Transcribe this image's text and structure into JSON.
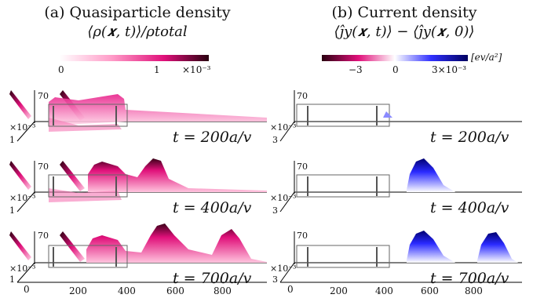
{
  "panel_a": {
    "title": "(a) Quasiparticle density",
    "expression": "⟨ρ(𝒙, t)⟩/ρtotal",
    "colorbar": {
      "ticks": [
        "0",
        "1"
      ],
      "scale": "×10⁻³",
      "colors": [
        "#ffffff",
        "#ff5fa8",
        "#e0107a",
        "#2a0010"
      ]
    }
  },
  "panel_b": {
    "title": "(b) Current density",
    "expression": "⟨ĵy(𝒙, t)⟩ − ⟨ĵy(𝒙, 0)⟩",
    "colorbar": {
      "ticks": [
        "−3",
        "0",
        "3×10⁻³"
      ],
      "unit": "[ev/a²]",
      "colors": [
        "#2a0010",
        "#e0107a",
        "#ffffff",
        "#2020ff",
        "#000060"
      ]
    }
  },
  "rows": [
    {
      "time_label": "t = 200a/v"
    },
    {
      "time_label": "t = 400a/v"
    },
    {
      "time_label": "t = 700a/v"
    }
  ],
  "axes": {
    "y_top_label": "70",
    "a_scale": "×10⁻³",
    "a_z_tick": "1",
    "b_scale": "×10⁻³",
    "b_z_tick": "3",
    "origin_label": "0",
    "x_ticks_a": [
      "0",
      "200",
      "400",
      "600",
      "800"
    ],
    "x_ticks_b": [
      "0",
      "200",
      "400",
      "600",
      "800"
    ]
  }
}
